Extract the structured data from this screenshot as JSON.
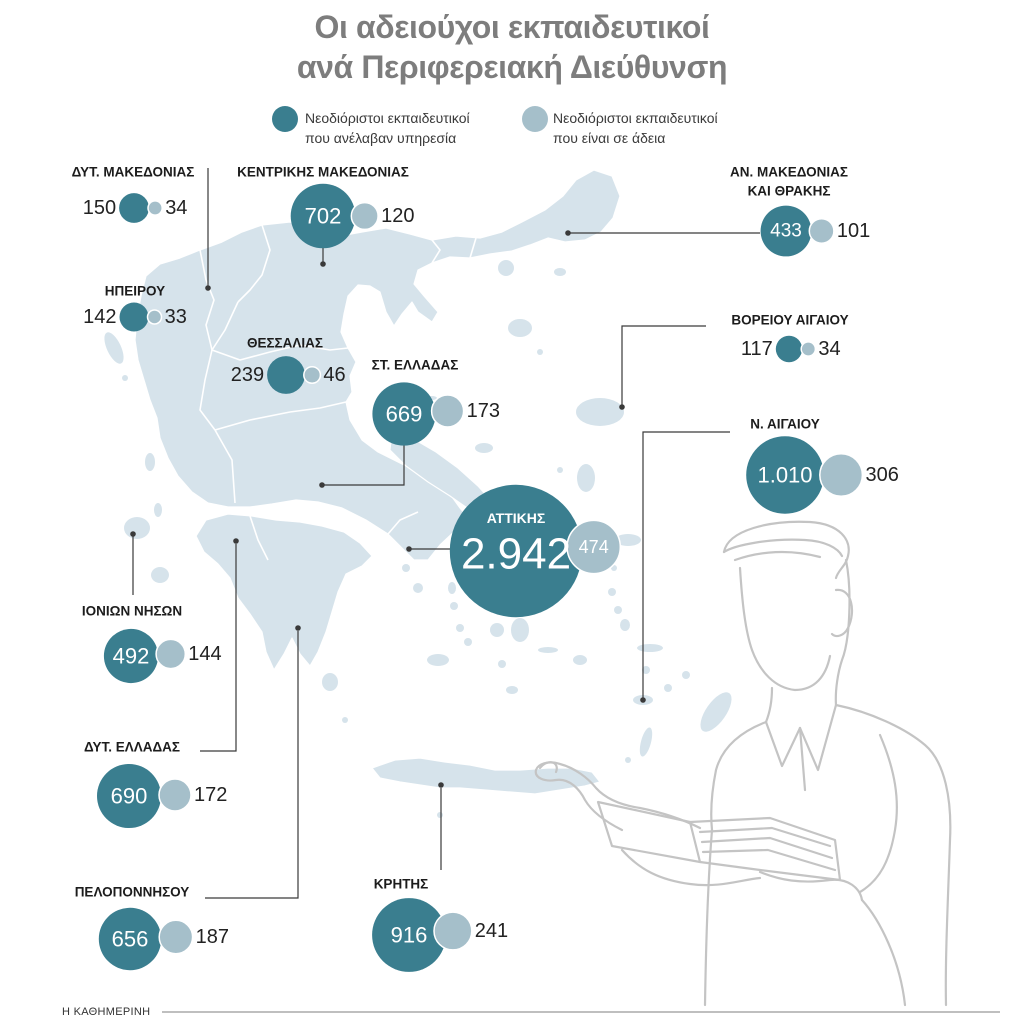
{
  "title": {
    "line1": "Οι αδειούχοι εκπαιδευτικοί",
    "line2": "ανά Περιφερειακή Διεύθυνση"
  },
  "legend": {
    "active": {
      "line1": "Νεοδιόριστοι εκπαιδευτικοί",
      "line2": "που ανέλαβαν υπηρεσία"
    },
    "on_leave": {
      "line1": "Νεοδιόριστοι εκπαιδευτικοί",
      "line2": "που είναι σε άδεια"
    }
  },
  "colors": {
    "active": "#3a7e8f",
    "on_leave": "#a5bfca",
    "map": "#d6e3eb",
    "title": "#7d7d7d",
    "leader": "#3a3a3a",
    "illustration": "#c4c4c4"
  },
  "regions": [
    {
      "label": [
        "ΔΥΤ. ΜΑΚΕΔΟΝΙΑΣ"
      ],
      "active": 150,
      "on_leave": 34
    },
    {
      "label": [
        "ΚΕΝΤΡΙΚΗΣ ΜΑΚΕΔΟΝΙΑΣ"
      ],
      "active": 702,
      "on_leave": 120
    },
    {
      "label": [
        "ΑΝ. ΜΑΚΕΔΟΝΙΑΣ",
        "ΚΑΙ ΘΡΑΚΗΣ"
      ],
      "active": 433,
      "on_leave": 101
    },
    {
      "label": [
        "ΗΠΕΙΡΟΥ"
      ],
      "active": 142,
      "on_leave": 33
    },
    {
      "label": [
        "ΒΟΡΕΙΟΥ ΑΙΓΑΙΟΥ"
      ],
      "active": 117,
      "on_leave": 34
    },
    {
      "label": [
        "ΘΕΣΣΑΛΙΑΣ"
      ],
      "active": 239,
      "on_leave": 46
    },
    {
      "label": [
        "ΣΤ. ΕΛΛΑΔΑΣ"
      ],
      "active": 669,
      "on_leave": 173
    },
    {
      "label": [
        "Ν. ΑΙΓΑΙΟΥ"
      ],
      "active": 1010,
      "on_leave": 306
    },
    {
      "label": [
        "ΑΤΤΙΚΗΣ"
      ],
      "active": 2942,
      "on_leave": 474
    },
    {
      "label": [
        "ΙΟΝΙΩΝ ΝΗΣΩΝ"
      ],
      "active": 492,
      "on_leave": 144
    },
    {
      "label": [
        "ΔΥΤ. ΕΛΛΑΔΑΣ"
      ],
      "active": 690,
      "on_leave": 172
    },
    {
      "label": [
        "ΠΕΛΟΠΟΝΝΗΣΟΥ"
      ],
      "active": 656,
      "on_leave": 187
    },
    {
      "label": [
        "ΚΡΗΤΗΣ"
      ],
      "active": 916,
      "on_leave": 241
    }
  ],
  "footer": {
    "source": "Η ΚΑΘΗΜΕΡΙΝΗ"
  }
}
